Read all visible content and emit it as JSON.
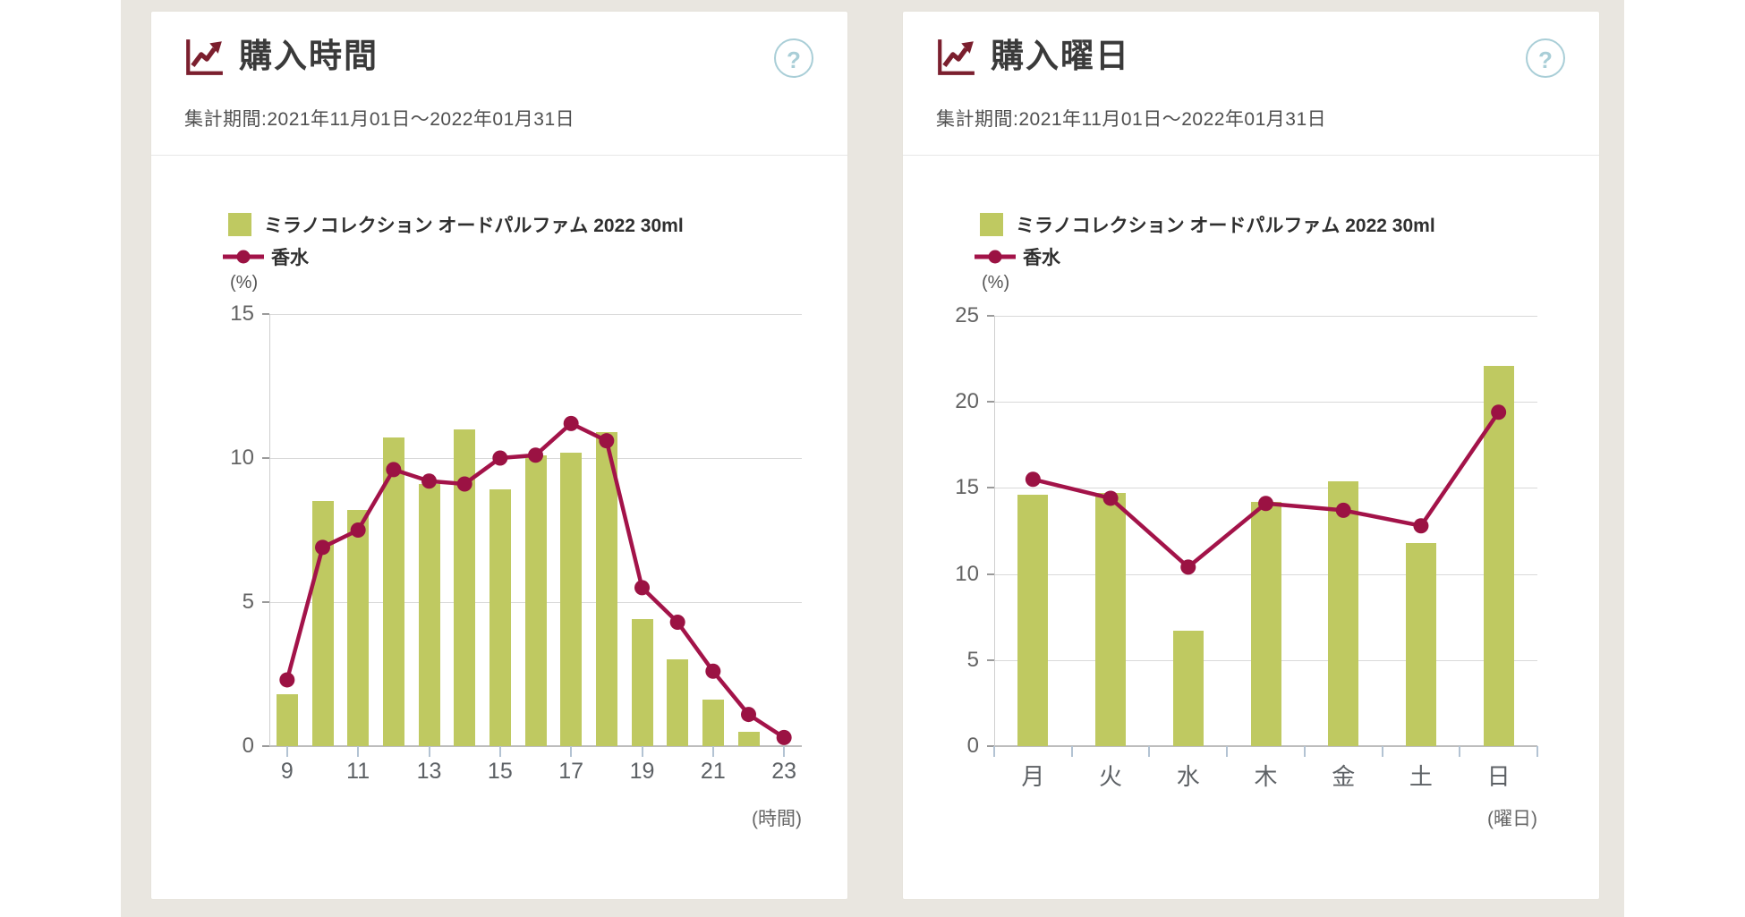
{
  "theme": {
    "background": "#e9e6e0",
    "bar_color": "#bfc961",
    "line_color": "#a31349",
    "marker_color": "#9b1243",
    "title_icon_color": "#7b1f2e",
    "help_icon_color": "#a9ced7"
  },
  "cards": [
    {
      "title": "購入時間",
      "help_glyph": "?",
      "period": "集計期間:2021年11月01日～2022年01月31日",
      "unit_label": "(%)",
      "x_axis_label": "(時間)",
      "legend": [
        {
          "type": "bar",
          "label": "ミラノコレクション オードパルファム 2022 30ml"
        },
        {
          "type": "line",
          "label": "香水"
        }
      ]
    },
    {
      "title": "購入曜日",
      "help_glyph": "?",
      "period": "集計期間:2021年11月01日～2022年01月31日",
      "unit_label": "(%)",
      "x_axis_label": "(曜日)",
      "legend": [
        {
          "type": "bar",
          "label": "ミラノコレクション オードパルファム 2022 30ml"
        },
        {
          "type": "line",
          "label": "香水"
        }
      ]
    }
  ],
  "chart_data": [
    {
      "type": "bar+line",
      "title": "購入時間",
      "xlabel": "(時間)",
      "ylabel": "(%)",
      "ylim": [
        0,
        15
      ],
      "yticks": [
        0,
        5,
        10,
        15
      ],
      "grid": true,
      "legend_position": "top-left",
      "categories": [
        "9",
        "10",
        "11",
        "12",
        "13",
        "14",
        "15",
        "16",
        "17",
        "18",
        "19",
        "20",
        "21",
        "22",
        "23"
      ],
      "x_tick_indices": [
        0,
        2,
        4,
        6,
        8,
        10,
        12,
        14
      ],
      "x_tick_marks": "labels",
      "series": [
        {
          "name": "ミラノコレクション オードパルファム 2022 30ml",
          "type": "bar",
          "color": "#bfc961",
          "values": [
            1.8,
            8.5,
            8.2,
            10.7,
            9.1,
            11.0,
            8.9,
            10.1,
            10.2,
            10.9,
            4.4,
            3.0,
            1.6,
            0.5,
            0
          ]
        },
        {
          "name": "香水",
          "type": "line",
          "color": "#a31349",
          "marker_color": "#9b1243",
          "values": [
            2.3,
            6.9,
            7.5,
            9.6,
            9.2,
            9.1,
            10.0,
            10.1,
            11.2,
            10.6,
            5.5,
            4.3,
            2.6,
            1.1,
            0.3
          ]
        }
      ]
    },
    {
      "type": "bar+line",
      "title": "購入曜日",
      "xlabel": "(曜日)",
      "ylabel": "(%)",
      "ylim": [
        0,
        25
      ],
      "yticks": [
        0,
        5,
        10,
        15,
        20,
        25
      ],
      "grid": true,
      "legend_position": "top-left",
      "categories": [
        "月",
        "火",
        "水",
        "木",
        "金",
        "土",
        "日"
      ],
      "x_tick_indices": [
        0,
        1,
        2,
        3,
        4,
        5,
        6
      ],
      "x_tick_marks": "boundaries",
      "series": [
        {
          "name": "ミラノコレクション オードパルファム 2022 30ml",
          "type": "bar",
          "color": "#bfc961",
          "values": [
            14.6,
            14.7,
            6.7,
            14.2,
            15.4,
            11.8,
            22.1
          ]
        },
        {
          "name": "香水",
          "type": "line",
          "color": "#a31349",
          "marker_color": "#9b1243",
          "values": [
            15.5,
            14.4,
            10.4,
            14.1,
            13.7,
            12.8,
            19.4
          ]
        }
      ]
    }
  ]
}
